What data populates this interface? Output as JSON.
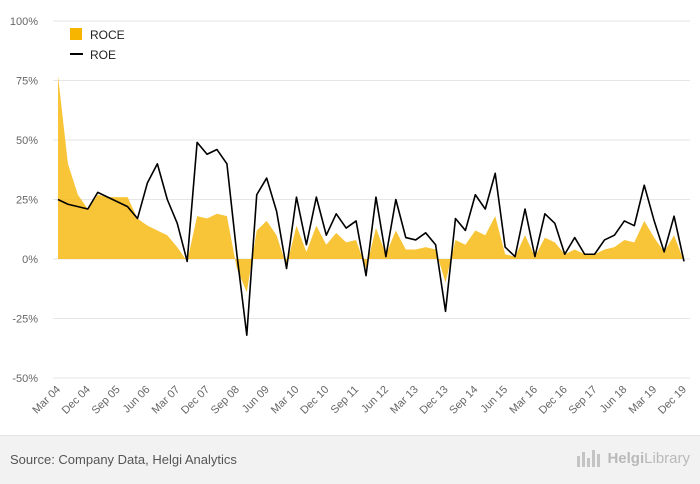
{
  "chart_data": {
    "type": "area",
    "y_ticks": [
      "100%",
      "75%",
      "50%",
      "25%",
      "0%",
      "-25%",
      "-50%"
    ],
    "y_tick_values": [
      100,
      75,
      50,
      25,
      0,
      -25,
      -50
    ],
    "ylim": [
      -50,
      100
    ],
    "grid": true,
    "legend_position": "top-left",
    "x_tick_labels": [
      "Mar 04",
      "Dec 04",
      "Sep 05",
      "Jun 06",
      "Mar 07",
      "Dec 07",
      "Sep 08",
      "Jun 09",
      "Mar 10",
      "Dec 10",
      "Sep 11",
      "Jun 12",
      "Mar 13",
      "Dec 13",
      "Sep 14",
      "Jun 15",
      "Mar 16",
      "Dec 16",
      "Sep 17",
      "Jun 18",
      "Mar 19",
      "Dec 19"
    ],
    "x": [
      "Mar 04",
      "Jun 04",
      "Sep 04",
      "Dec 04",
      "Mar 05",
      "Jun 05",
      "Sep 05",
      "Dec 05",
      "Mar 06",
      "Jun 06",
      "Sep 06",
      "Dec 06",
      "Mar 07",
      "Jun 07",
      "Sep 07",
      "Dec 07",
      "Mar 08",
      "Jun 08",
      "Sep 08",
      "Dec 08",
      "Mar 09",
      "Jun 09",
      "Sep 09",
      "Dec 09",
      "Mar 10",
      "Jun 10",
      "Sep 10",
      "Dec 10",
      "Mar 11",
      "Jun 11",
      "Sep 11",
      "Dec 11",
      "Mar 12",
      "Jun 12",
      "Sep 12",
      "Dec 12",
      "Mar 13",
      "Jun 13",
      "Sep 13",
      "Dec 13",
      "Mar 14",
      "Jun 14",
      "Sep 14",
      "Dec 14",
      "Mar 15",
      "Jun 15",
      "Sep 15",
      "Dec 15",
      "Mar 16",
      "Jun 16",
      "Sep 16",
      "Dec 16",
      "Mar 17",
      "Jun 17",
      "Sep 17",
      "Dec 17",
      "Mar 18",
      "Jun 18",
      "Sep 18",
      "Dec 18",
      "Mar 19",
      "Jun 19",
      "Sep 19",
      "Dec 19"
    ],
    "series": [
      {
        "name": "ROCE",
        "type": "area",
        "color": "#f7b500",
        "values": [
          77,
          40,
          27,
          21,
          27,
          26,
          26,
          26,
          17,
          14,
          12,
          10,
          5,
          -1,
          18,
          17,
          19,
          18,
          -4,
          -14,
          12,
          16,
          10,
          -3,
          14,
          3,
          14,
          6,
          11,
          7,
          8,
          -4,
          13,
          2,
          12,
          4,
          4,
          5,
          4,
          -10,
          8,
          6,
          12,
          10,
          18,
          2,
          1,
          10,
          1,
          9,
          7,
          2,
          4,
          2,
          2,
          4,
          5,
          8,
          7,
          16,
          9,
          3,
          10,
          -1
        ]
      },
      {
        "name": "ROE",
        "type": "line",
        "color": "#000000",
        "values": [
          25,
          23,
          22,
          21,
          28,
          26,
          24,
          22,
          17,
          32,
          40,
          25,
          15,
          -1,
          49,
          44,
          46,
          40,
          2,
          -32,
          27,
          34,
          20,
          -4,
          26,
          6,
          26,
          10,
          19,
          13,
          16,
          -7,
          26,
          1,
          25,
          9,
          8,
          11,
          6,
          -22,
          17,
          12,
          27,
          21,
          36,
          5,
          1,
          21,
          1,
          19,
          15,
          2,
          9,
          2,
          2,
          8,
          10,
          16,
          14,
          31,
          16,
          3,
          18,
          -1
        ]
      }
    ]
  },
  "footer": {
    "source": "Source: Company Data, Helgi Analytics",
    "logo_text_bold": "Helgi",
    "logo_text_rest": "Library"
  }
}
